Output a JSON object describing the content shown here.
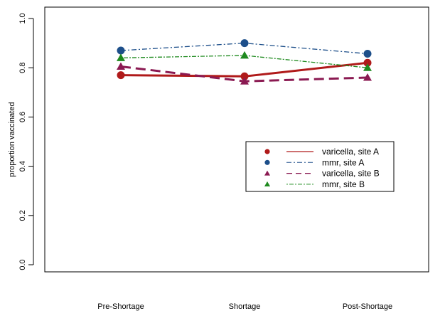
{
  "chart_data": {
    "type": "line",
    "title": "",
    "xlabel": "",
    "ylabel": "proportion vaccinated",
    "categories": [
      "Pre-Shortage",
      "Shortage",
      "Post-Shortage"
    ],
    "ylim": [
      0.0,
      1.0
    ],
    "yticks": [
      "0.0",
      "0.2",
      "0.4",
      "0.6",
      "0.8",
      "1.0"
    ],
    "grid": false,
    "legend_position": "right-center",
    "series": [
      {
        "name": "varicella, site A",
        "values": [
          0.77,
          0.765,
          0.82
        ],
        "color": "#b01a1a",
        "marker": "circle",
        "line_style": "solid"
      },
      {
        "name": "mmr, site A",
        "values": [
          0.87,
          0.9,
          0.857
        ],
        "color": "#1d4f8a",
        "marker": "circle",
        "line_style": "dashdot"
      },
      {
        "name": "varicella, site B",
        "values": [
          0.805,
          0.745,
          0.76
        ],
        "color": "#8b1a52",
        "marker": "triangle",
        "line_style": "longdash"
      },
      {
        "name": "mmr, site B",
        "values": [
          0.84,
          0.85,
          0.8
        ],
        "color": "#1e8a1e",
        "marker": "triangle",
        "line_style": "dotdash"
      }
    ]
  }
}
